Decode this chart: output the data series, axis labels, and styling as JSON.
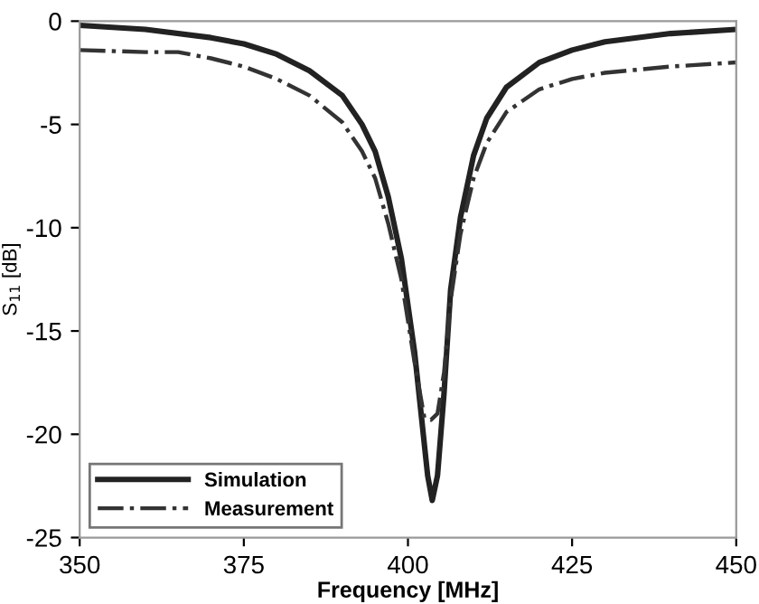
{
  "chart_data": {
    "type": "line",
    "xlabel": "Frequency [MHz]",
    "ylabel": "S$_{11}$ [dB]",
    "xlim": [
      350,
      450
    ],
    "xticks": [
      350,
      375,
      400,
      425,
      450
    ],
    "ylim": [
      -25,
      0
    ],
    "yticks": [
      -25,
      -20,
      -15,
      -10,
      -5,
      0
    ],
    "grid": false,
    "legend": "bottom left",
    "series": [
      {
        "name": "Simulation",
        "color": "#222222",
        "line_style": "solid",
        "x": [
          350,
          360,
          370,
          375,
          380,
          385,
          390,
          393,
          395,
          397,
          399,
          401,
          402,
          403,
          403.7,
          404.5,
          405.5,
          406.5,
          408,
          410,
          412,
          415,
          420,
          425,
          430,
          440,
          450
        ],
        "values": [
          -0.2,
          -0.4,
          -0.8,
          -1.1,
          -1.6,
          -2.4,
          -3.6,
          -5,
          -6.3,
          -8.5,
          -11.5,
          -16,
          -19,
          -22,
          -23.2,
          -22,
          -18,
          -13,
          -9.5,
          -6.5,
          -4.7,
          -3.2,
          -2.0,
          -1.4,
          -1.0,
          -0.6,
          -0.4
        ]
      },
      {
        "name": "Measurement",
        "color": "#333333",
        "line_style": "dashdot",
        "x": [
          350,
          360,
          365,
          370,
          375,
          380,
          385,
          390,
          393,
          395,
          397,
          399,
          401,
          402.5,
          403.5,
          404.5,
          405.5,
          406.5,
          408,
          410,
          412,
          415,
          420,
          425,
          430,
          440,
          450
        ],
        "values": [
          -1.4,
          -1.5,
          -1.5,
          -1.8,
          -2.2,
          -2.8,
          -3.6,
          -4.9,
          -6.3,
          -7.6,
          -9.8,
          -12.5,
          -16.5,
          -19.2,
          -19.3,
          -19,
          -17,
          -13.5,
          -10.3,
          -7.6,
          -5.9,
          -4.4,
          -3.3,
          -2.8,
          -2.5,
          -2.2,
          -2.0
        ]
      }
    ]
  }
}
